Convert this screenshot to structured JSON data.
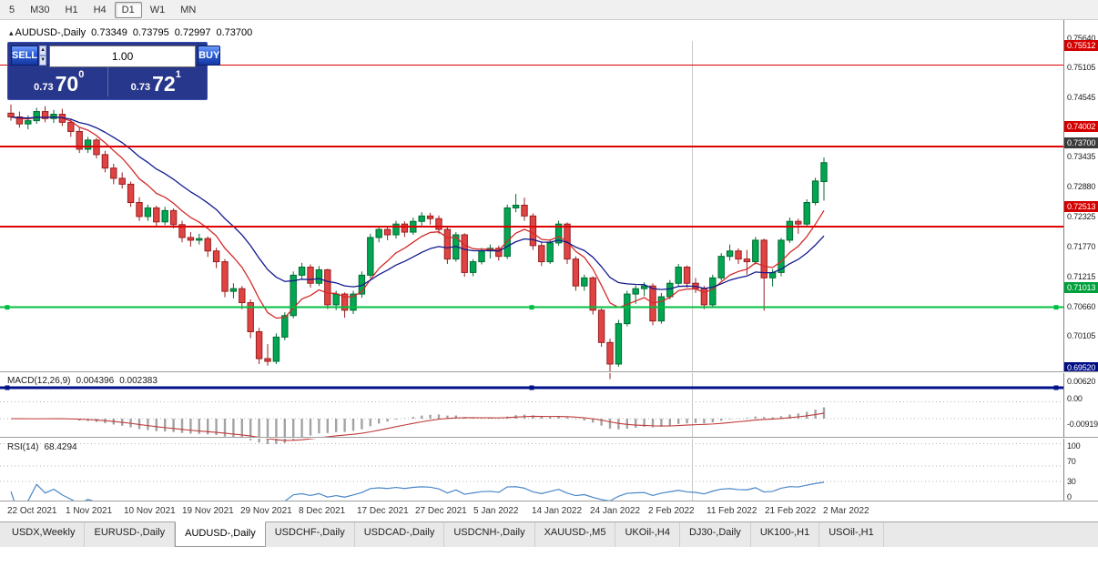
{
  "toolbar": {
    "timeframes": [
      "5",
      "M30",
      "H1",
      "H4",
      "D1",
      "W1",
      "MN"
    ],
    "selected": "D1"
  },
  "chart": {
    "collapse_icon": "▴",
    "symbol_title": "AUDUSD-,Daily",
    "open": "0.73349",
    "high": "0.73795",
    "low": "0.72997",
    "close": "0.73700"
  },
  "trade_panel": {
    "sell_label": "SELL",
    "buy_label": "BUY",
    "volume": "1.00",
    "sell_price": {
      "small": "0.73",
      "big": "70",
      "sup": "0"
    },
    "buy_price": {
      "small": "0.73",
      "big": "72",
      "sup": "1"
    }
  },
  "indicators": {
    "macd": {
      "label": "MACD(12,26,9)",
      "main_value": "0.004396",
      "signal_value": "0.002383",
      "axis_labels": [
        {
          "text": "0.00620",
          "value": 0.0062
        },
        {
          "text": "0.00",
          "value": 0
        },
        {
          "text": "-0.00919",
          "value": -0.00919
        }
      ]
    },
    "rsi": {
      "label": "RSI(14)",
      "value": "68.4294",
      "axis_labels": [
        {
          "text": "100",
          "value": 100
        },
        {
          "text": "70",
          "value": 70
        },
        {
          "text": "30",
          "value": 30
        },
        {
          "text": "0",
          "value": 0
        }
      ]
    }
  },
  "price_axis": {
    "plain_labels": [
      {
        "text": "0.75640",
        "value": 0.7564
      },
      {
        "text": "0.75105",
        "value": 0.75105
      },
      {
        "text": "0.74545",
        "value": 0.74545
      },
      {
        "text": "0.73435",
        "value": 0.73435
      },
      {
        "text": "0.72880",
        "value": 0.7288
      },
      {
        "text": "0.72325",
        "value": 0.72325
      },
      {
        "text": "0.71770",
        "value": 0.7177
      },
      {
        "text": "0.71215",
        "value": 0.71215
      },
      {
        "text": "0.70660",
        "value": 0.7066
      },
      {
        "text": "0.70105",
        "value": 0.70105
      }
    ],
    "badges": [
      {
        "text": "0.75512",
        "value": 0.75512,
        "bg": "#d40000"
      },
      {
        "text": "0.74002",
        "value": 0.74002,
        "bg": "#d40000"
      },
      {
        "text": "0.73700",
        "value": 0.737,
        "bg": "#3a3a3a"
      },
      {
        "text": "0.72513",
        "value": 0.72513,
        "bg": "#d40000"
      },
      {
        "text": "0.71013",
        "value": 0.71013,
        "bg": "#00a03c"
      },
      {
        "text": "0.69520",
        "value": 0.6952,
        "bg": "#000c86"
      }
    ]
  },
  "levels": [
    {
      "price": 0.75512,
      "color": "#dd0000",
      "width": 1,
      "selected": false
    },
    {
      "price": 0.74002,
      "color": "#dd0000",
      "width": 2,
      "selected": false
    },
    {
      "price": 0.72513,
      "color": "#dd0000",
      "width": 2,
      "selected": false
    },
    {
      "price": 0.71013,
      "color": "#00bf40",
      "width": 2,
      "selected": true
    },
    {
      "price": 0.6952,
      "color": "#00128a",
      "width": 3,
      "selected": true
    }
  ],
  "time_axis": [
    "22 Oct 2021",
    "1 Nov 2021",
    "10 Nov 2021",
    "19 Nov 2021",
    "29 Nov 2021",
    "8 Dec 2021",
    "17 Dec 2021",
    "27 Dec 2021",
    "5 Jan 2022",
    "14 Jan 2022",
    "24 Jan 2022",
    "2 Feb 2022",
    "11 Feb 2022",
    "21 Feb 2022",
    "2 Mar 2022"
  ],
  "tabs": {
    "items": [
      "USDX,Weekly",
      "EURUSD-,Daily",
      "AUDUSD-,Daily",
      "USDCHF-,Daily",
      "USDCAD-,Daily",
      "USDCNH-,Daily",
      "XAUUSD-,M5",
      "UKOil-,H4",
      "DJ30-,Daily",
      "UK100-,H1",
      "USOil-,H1"
    ],
    "active": "AUDUSD-,Daily"
  },
  "chart_data": {
    "type": "candlestick",
    "symbol": "AUDUSD-",
    "timeframe": "Daily",
    "current_ohlc": {
      "open": 0.73349,
      "high": 0.73795,
      "low": 0.72997,
      "close": 0.737
    },
    "y_range": [
      0.6952,
      0.7564
    ],
    "up_color": "#00a651",
    "down_color": "#e04343",
    "candles": [
      [
        0.7462,
        0.7478,
        0.7448,
        0.7455
      ],
      [
        0.7455,
        0.7465,
        0.7435,
        0.7442
      ],
      [
        0.7442,
        0.7458,
        0.7432,
        0.7448
      ],
      [
        0.7448,
        0.7472,
        0.7442,
        0.7465
      ],
      [
        0.7465,
        0.7475,
        0.7445,
        0.7452
      ],
      [
        0.7452,
        0.7468,
        0.7444,
        0.746
      ],
      [
        0.746,
        0.747,
        0.7438,
        0.7445
      ],
      [
        0.7445,
        0.7452,
        0.7418,
        0.7428
      ],
      [
        0.7428,
        0.7436,
        0.7388,
        0.7395
      ],
      [
        0.7395,
        0.7418,
        0.7388,
        0.7412
      ],
      [
        0.7412,
        0.7416,
        0.7378,
        0.7385
      ],
      [
        0.7385,
        0.7392,
        0.7352,
        0.736
      ],
      [
        0.736,
        0.7368,
        0.733,
        0.7341
      ],
      [
        0.7341,
        0.7352,
        0.7322,
        0.733
      ],
      [
        0.733,
        0.7335,
        0.7288,
        0.7296
      ],
      [
        0.7296,
        0.7306,
        0.7262,
        0.727
      ],
      [
        0.727,
        0.7292,
        0.7262,
        0.7286
      ],
      [
        0.7286,
        0.729,
        0.7252,
        0.726
      ],
      [
        0.726,
        0.7288,
        0.7254,
        0.7281
      ],
      [
        0.7281,
        0.7285,
        0.7248,
        0.7255
      ],
      [
        0.7255,
        0.7262,
        0.7222,
        0.7231
      ],
      [
        0.7231,
        0.7241,
        0.7214,
        0.7226
      ],
      [
        0.7226,
        0.7238,
        0.7218,
        0.7229
      ],
      [
        0.7229,
        0.7233,
        0.7195,
        0.7206
      ],
      [
        0.7206,
        0.7212,
        0.7174,
        0.7186
      ],
      [
        0.7186,
        0.7191,
        0.712,
        0.7131
      ],
      [
        0.7131,
        0.7146,
        0.7118,
        0.7136
      ],
      [
        0.7136,
        0.7141,
        0.7098,
        0.711
      ],
      [
        0.711,
        0.7116,
        0.7044,
        0.7056
      ],
      [
        0.7056,
        0.7063,
        0.6996,
        0.7006
      ],
      [
        0.7006,
        0.7033,
        0.6993,
        0.7001
      ],
      [
        0.7001,
        0.7053,
        0.6996,
        0.7046
      ],
      [
        0.7046,
        0.7092,
        0.704,
        0.7086
      ],
      [
        0.7086,
        0.7168,
        0.7081,
        0.7161
      ],
      [
        0.7161,
        0.7184,
        0.7152,
        0.7176
      ],
      [
        0.7176,
        0.7181,
        0.7138,
        0.7146
      ],
      [
        0.7146,
        0.7178,
        0.7141,
        0.7171
      ],
      [
        0.7171,
        0.7173,
        0.7098,
        0.7106
      ],
      [
        0.7106,
        0.7132,
        0.7096,
        0.7126
      ],
      [
        0.7126,
        0.7129,
        0.7082,
        0.7096
      ],
      [
        0.7096,
        0.7132,
        0.7089,
        0.7126
      ],
      [
        0.7126,
        0.7168,
        0.7119,
        0.7161
      ],
      [
        0.7161,
        0.7238,
        0.7156,
        0.7231
      ],
      [
        0.7231,
        0.7252,
        0.7222,
        0.7246
      ],
      [
        0.7246,
        0.7251,
        0.7226,
        0.7236
      ],
      [
        0.7236,
        0.7262,
        0.7229,
        0.7256
      ],
      [
        0.7256,
        0.7261,
        0.7232,
        0.7241
      ],
      [
        0.7241,
        0.7268,
        0.7236,
        0.7261
      ],
      [
        0.7261,
        0.7278,
        0.7252,
        0.7271
      ],
      [
        0.7271,
        0.7277,
        0.7255,
        0.7266
      ],
      [
        0.7266,
        0.7272,
        0.7238,
        0.7246
      ],
      [
        0.7246,
        0.7251,
        0.7182,
        0.7191
      ],
      [
        0.7191,
        0.7241,
        0.7186,
        0.7236
      ],
      [
        0.7236,
        0.7239,
        0.7158,
        0.7166
      ],
      [
        0.7166,
        0.7191,
        0.7159,
        0.7186
      ],
      [
        0.7186,
        0.7212,
        0.7181,
        0.7206
      ],
      [
        0.7206,
        0.7218,
        0.7192,
        0.7211
      ],
      [
        0.7211,
        0.7216,
        0.7188,
        0.7196
      ],
      [
        0.7196,
        0.7292,
        0.7191,
        0.7286
      ],
      [
        0.7286,
        0.7312,
        0.7278,
        0.7291
      ],
      [
        0.7291,
        0.7305,
        0.7262,
        0.7271
      ],
      [
        0.7271,
        0.7276,
        0.7208,
        0.7216
      ],
      [
        0.7216,
        0.7222,
        0.7178,
        0.7186
      ],
      [
        0.7186,
        0.7228,
        0.7182,
        0.7221
      ],
      [
        0.7221,
        0.7262,
        0.7216,
        0.7256
      ],
      [
        0.7256,
        0.7259,
        0.7182,
        0.7191
      ],
      [
        0.7191,
        0.7196,
        0.7132,
        0.7141
      ],
      [
        0.7141,
        0.7162,
        0.7132,
        0.7156
      ],
      [
        0.7156,
        0.7159,
        0.7088,
        0.7096
      ],
      [
        0.7096,
        0.7099,
        0.7028,
        0.7036
      ],
      [
        0.7036,
        0.7043,
        0.6968,
        0.6996
      ],
      [
        0.6996,
        0.7078,
        0.6991,
        0.7071
      ],
      [
        0.7071,
        0.7132,
        0.7066,
        0.7126
      ],
      [
        0.7126,
        0.7142,
        0.7108,
        0.7136
      ],
      [
        0.7136,
        0.7148,
        0.7122,
        0.7141
      ],
      [
        0.7141,
        0.7146,
        0.7068,
        0.7076
      ],
      [
        0.7076,
        0.7128,
        0.7071,
        0.7121
      ],
      [
        0.7121,
        0.7152,
        0.7116,
        0.7146
      ],
      [
        0.7146,
        0.7182,
        0.7141,
        0.7176
      ],
      [
        0.7176,
        0.7179,
        0.7138,
        0.7146
      ],
      [
        0.7146,
        0.7156,
        0.7128,
        0.7136
      ],
      [
        0.7136,
        0.7141,
        0.7098,
        0.7106
      ],
      [
        0.7106,
        0.7162,
        0.7101,
        0.7156
      ],
      [
        0.7156,
        0.7202,
        0.7151,
        0.7196
      ],
      [
        0.7196,
        0.7218,
        0.7188,
        0.7206
      ],
      [
        0.7206,
        0.7211,
        0.7182,
        0.7191
      ],
      [
        0.7191,
        0.7208,
        0.7162,
        0.7186
      ],
      [
        0.7186,
        0.7232,
        0.7181,
        0.7226
      ],
      [
        0.7226,
        0.7229,
        0.7095,
        0.7156
      ],
      [
        0.7156,
        0.7172,
        0.714,
        0.7166
      ],
      [
        0.7166,
        0.723,
        0.7159,
        0.7226
      ],
      [
        0.7226,
        0.7268,
        0.7221,
        0.7261
      ],
      [
        0.7261,
        0.7266,
        0.7238,
        0.7256
      ],
      [
        0.7256,
        0.7302,
        0.7251,
        0.7296
      ],
      [
        0.7296,
        0.7342,
        0.7291,
        0.7336
      ],
      [
        0.73349,
        0.73795,
        0.72997,
        0.737
      ]
    ]
  }
}
